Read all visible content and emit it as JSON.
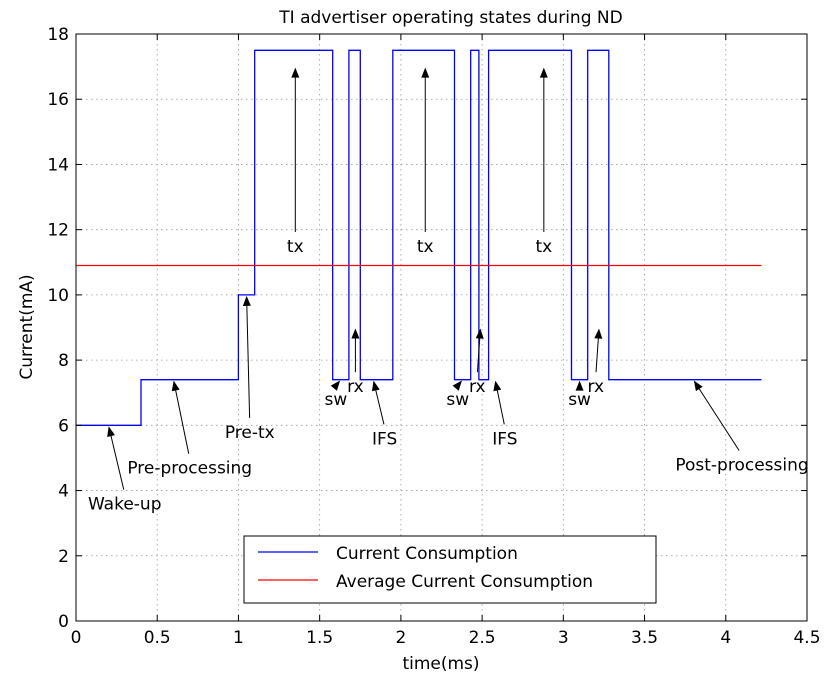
{
  "chart_data": {
    "type": "line",
    "title": "TI advertiser operating states during ND",
    "xlabel": "time(ms)",
    "ylabel": "Current(mA)",
    "xlim": [
      0,
      4.5
    ],
    "ylim": [
      0,
      18
    ],
    "xticks": [
      0,
      0.5,
      1,
      1.5,
      2,
      2.5,
      3,
      3.5,
      4,
      4.5
    ],
    "xtick_labels": [
      "0",
      "0.5",
      "1",
      "1.5",
      "2",
      "2.5",
      "3",
      "3.5",
      "4",
      "4.5"
    ],
    "yticks": [
      0,
      2,
      4,
      6,
      8,
      10,
      12,
      14,
      16,
      18
    ],
    "ytick_labels": [
      "0",
      "2",
      "4",
      "6",
      "8",
      "10",
      "12",
      "14",
      "16",
      "18"
    ],
    "grid": true,
    "legend_position": "bottom-center",
    "series": [
      {
        "name": "Current Consumption",
        "color": "#0000ff",
        "style": "step",
        "x": [
          0,
          0.4,
          0.4,
          1.0,
          1.0,
          1.1,
          1.1,
          1.58,
          1.58,
          1.68,
          1.68,
          1.75,
          1.75,
          1.8,
          1.8,
          1.95,
          1.95,
          2.33,
          2.33,
          2.43,
          2.43,
          2.48,
          2.48,
          2.54,
          2.54,
          2.69,
          2.69,
          3.05,
          3.05,
          3.15,
          3.15,
          3.23,
          3.23,
          3.28,
          3.28,
          4.22
        ],
        "y": [
          6,
          6,
          7.4,
          7.4,
          10,
          10,
          17.5,
          17.5,
          7.4,
          7.4,
          17.5,
          17.5,
          7.4,
          7.4,
          7.4,
          7.4,
          17.5,
          17.5,
          7.4,
          7.4,
          17.5,
          17.5,
          7.4,
          7.4,
          17.5,
          17.5,
          17.5,
          17.5,
          7.4,
          7.4,
          17.5,
          17.5,
          17.5,
          17.5,
          7.4,
          7.4
        ]
      },
      {
        "name": "Average Current Consumption",
        "color": "#ff0000",
        "style": "line",
        "x": [
          0,
          4.22
        ],
        "y": [
          10.9,
          10.9
        ]
      }
    ],
    "annotations": [
      {
        "text": "Wake-up",
        "text_at": [
          0.3,
          3.6
        ],
        "arrow_to": [
          0.2,
          6.0
        ]
      },
      {
        "text": "Pre-processing",
        "text_at": [
          0.7,
          4.7
        ],
        "arrow_to": [
          0.6,
          7.4
        ]
      },
      {
        "text": "Pre-tx",
        "text_at": [
          1.07,
          5.8
        ],
        "arrow_to": [
          1.05,
          10.0
        ]
      },
      {
        "text": "tx",
        "text_at": [
          1.35,
          11.5
        ],
        "arrow_to": [
          1.35,
          17.0
        ]
      },
      {
        "text": "sw",
        "text_at": [
          1.6,
          6.8
        ],
        "arrow_to": [
          1.63,
          7.4
        ]
      },
      {
        "text": "rx",
        "text_at": [
          1.72,
          7.2
        ],
        "arrow_to": [
          1.72,
          9.0
        ]
      },
      {
        "text": "IFS",
        "text_at": [
          1.9,
          5.6
        ],
        "arrow_to": [
          1.83,
          7.4
        ]
      },
      {
        "text": "tx",
        "text_at": [
          2.15,
          11.5
        ],
        "arrow_to": [
          2.15,
          17.0
        ]
      },
      {
        "text": "sw",
        "text_at": [
          2.35,
          6.8
        ],
        "arrow_to": [
          2.38,
          7.4
        ]
      },
      {
        "text": "rx",
        "text_at": [
          2.47,
          7.2
        ],
        "arrow_to": [
          2.49,
          9.0
        ]
      },
      {
        "text": "IFS",
        "text_at": [
          2.64,
          5.6
        ],
        "arrow_to": [
          2.58,
          7.4
        ]
      },
      {
        "text": "tx",
        "text_at": [
          2.88,
          11.5
        ],
        "arrow_to": [
          2.88,
          17.0
        ]
      },
      {
        "text": "sw",
        "text_at": [
          3.1,
          6.8
        ],
        "arrow_to": [
          3.1,
          7.4
        ]
      },
      {
        "text": "rx",
        "text_at": [
          3.2,
          7.2
        ],
        "arrow_to": [
          3.22,
          9.0
        ]
      },
      {
        "text": "Post-processing",
        "text_at": [
          4.1,
          4.8
        ],
        "arrow_to": [
          3.8,
          7.4
        ]
      }
    ]
  }
}
